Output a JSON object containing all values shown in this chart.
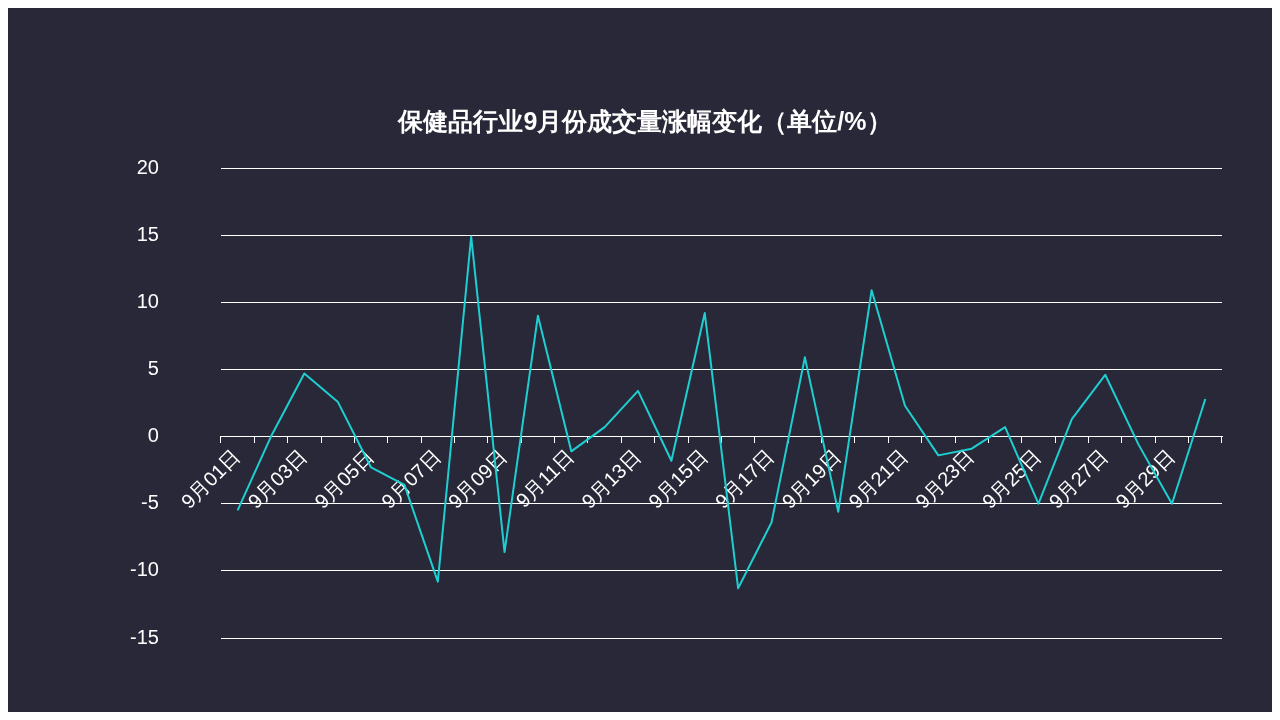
{
  "chart_data": {
    "type": "line",
    "title": "保健品行业9月份成交量涨幅变化（单位/%）",
    "categories": [
      "9月01日",
      null,
      "9月03日",
      null,
      "9月05日",
      null,
      "9月07日",
      null,
      "9月09日",
      null,
      "9月11日",
      null,
      "9月13日",
      null,
      "9月15日",
      null,
      "9月17日",
      null,
      "9月19日",
      null,
      "9月21日",
      null,
      "9月23日",
      null,
      "9月25日",
      null,
      "9月27日",
      null,
      "9月29日",
      null
    ],
    "values": [
      -5.5,
      0,
      4.7,
      2.6,
      -2.3,
      -3.6,
      -10.8,
      14.9,
      -8.6,
      9.0,
      -1.1,
      0.7,
      3.4,
      -1.8,
      9.2,
      -11.3,
      -6.4,
      5.9,
      -5.6,
      10.9,
      2.3,
      -1.4,
      -0.9,
      0.7,
      -5.0,
      1.3,
      4.6,
      -0.6,
      -5.0,
      2.8
    ],
    "color": "#1ecfd2",
    "ylim": [
      -15,
      20
    ],
    "yticks": [
      -15,
      -10,
      -5,
      0,
      5,
      10,
      15,
      20
    ],
    "grid": "y",
    "marker": "none",
    "line_style": "solid"
  }
}
